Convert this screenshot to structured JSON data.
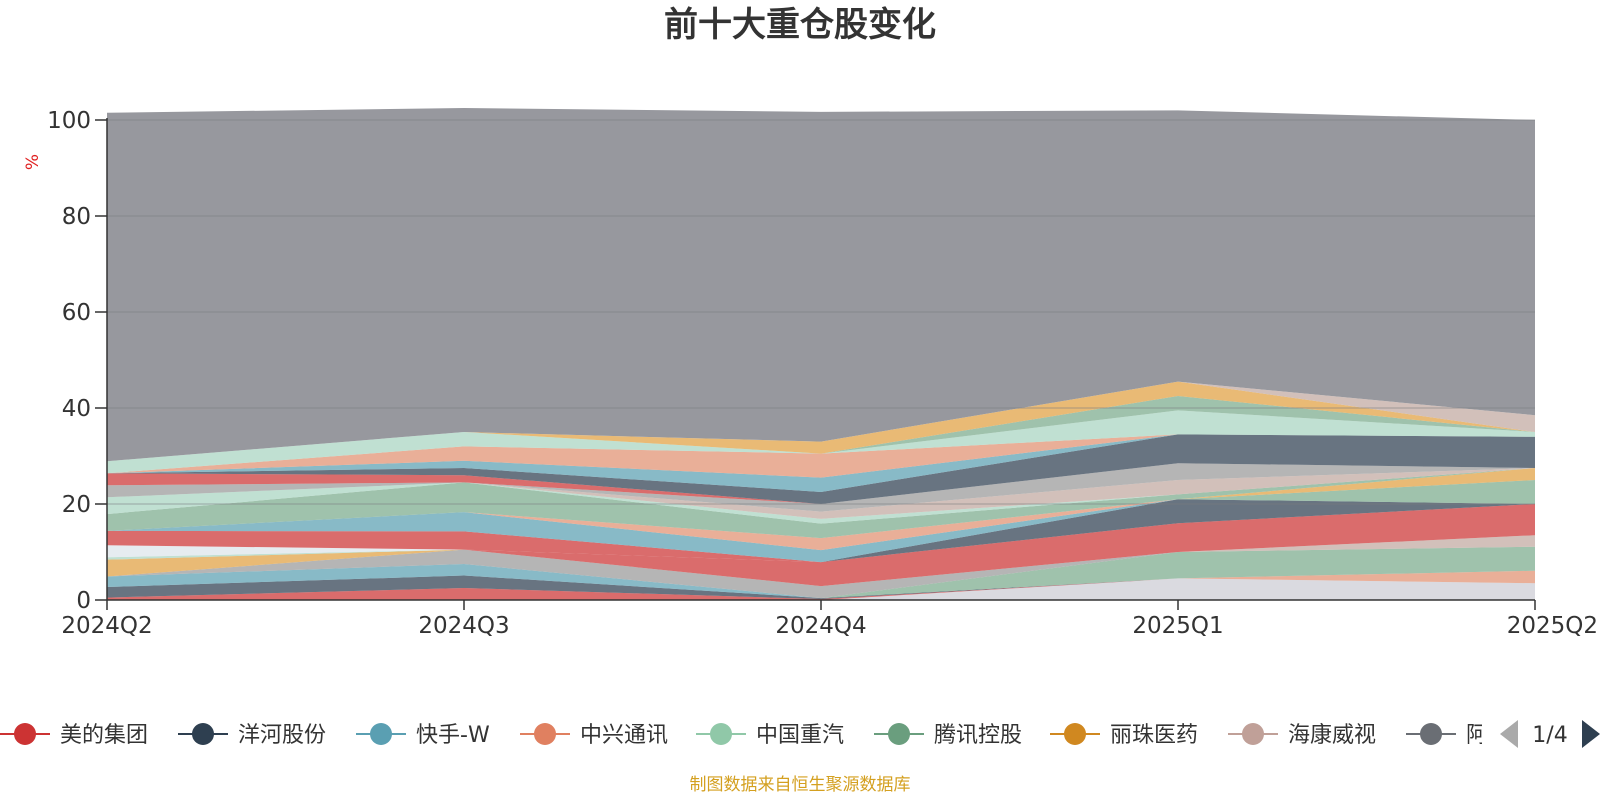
{
  "chart_data": {
    "type": "area",
    "stacked": true,
    "title": "前十大重仓股变化",
    "ylabel": "%",
    "ylim": [
      0,
      100
    ],
    "yticks": [
      0,
      20,
      40,
      60,
      80,
      100
    ],
    "grid": true,
    "categories": [
      "2024Q2",
      "2024Q3",
      "2024Q4",
      "2025Q1",
      "2025Q2"
    ],
    "series": [
      {
        "color": "#ccccd4",
        "values": [
          0,
          0,
          0,
          4.5,
          3.5
        ]
      },
      {
        "color": "#cc3333",
        "values": [
          0.5,
          2.5,
          0.2,
          0,
          0
        ]
      },
      {
        "color": "#2e3f50",
        "values": [
          2.2,
          2.6,
          0.2,
          0,
          0
        ]
      },
      {
        "color": "#5a9fb2",
        "values": [
          2.2,
          2.4,
          0,
          0,
          0
        ]
      },
      {
        "color": "#e09070",
        "values": [
          0,
          0,
          0,
          0,
          2.6
        ]
      },
      {
        "color": "#7aab8c",
        "values": [
          0,
          0,
          0,
          5.5,
          5
        ]
      },
      {
        "color": "#c0a8a0",
        "values": [
          0,
          0,
          0,
          0,
          2.4
        ]
      },
      {
        "color": "#999999",
        "values": [
          0,
          3,
          2.5,
          0,
          0
        ]
      },
      {
        "color": "#cc3333",
        "values": [
          0,
          0,
          5,
          6,
          6.5
        ]
      },
      {
        "color": "#2e3f50",
        "values": [
          0,
          0,
          0,
          5,
          0
        ]
      },
      {
        "color": "#7aab8c",
        "values": [
          0,
          0,
          0,
          0,
          5
        ]
      },
      {
        "color": "#e0a040",
        "values": [
          3.5,
          0,
          0,
          0,
          2.5
        ]
      },
      {
        "color": "#a8d4c0",
        "values": [
          0.5,
          0,
          0,
          0,
          0
        ]
      },
      {
        "color": "#dde4ea",
        "values": [
          2.5,
          0,
          0,
          0,
          0
        ]
      },
      {
        "color": "#cc3333",
        "values": [
          3,
          3.8,
          0,
          0,
          0
        ]
      },
      {
        "color": "#5a9fb2",
        "values": [
          0,
          4,
          2.5,
          0,
          0
        ]
      },
      {
        "color": "#e09070",
        "values": [
          0,
          0,
          2.5,
          0,
          0
        ]
      },
      {
        "color": "#7aab8c",
        "values": [
          3.5,
          6.2,
          3,
          1,
          0
        ]
      },
      {
        "color": "#a8d4c0",
        "values": [
          3.5,
          0,
          1,
          0,
          0
        ]
      },
      {
        "color": "#c0a8a0",
        "values": [
          0,
          0,
          1.5,
          3,
          0
        ]
      },
      {
        "color": "#999999",
        "values": [
          2.5,
          0,
          1.6,
          3.5,
          0
        ]
      },
      {
        "color": "#cc3333",
        "values": [
          2.5,
          1.5,
          0,
          0,
          0
        ]
      },
      {
        "color": "#2e3f50",
        "values": [
          0,
          1.5,
          2.5,
          6,
          6.5
        ]
      },
      {
        "color": "#5a9fb2",
        "values": [
          0,
          1.5,
          3,
          0,
          0
        ]
      },
      {
        "color": "#e09070",
        "values": [
          0,
          3,
          5,
          0,
          0
        ]
      },
      {
        "color": "#a8d4c0",
        "values": [
          2.5,
          3,
          0,
          5,
          1
        ]
      },
      {
        "color": "#7aab8c",
        "values": [
          0,
          0,
          0,
          3,
          0
        ]
      },
      {
        "color": "#e0a040",
        "values": [
          0,
          0,
          2.5,
          3,
          0
        ]
      },
      {
        "color": "#c0a8a0",
        "values": [
          0,
          0,
          0,
          0,
          3.5
        ]
      },
      {
        "color": "#97989e",
        "values": [
          72.6,
          67.5,
          68.7,
          56.5,
          61.5
        ]
      }
    ],
    "legend": {
      "position": "bottom",
      "items": [
        {
          "label": "美的集团",
          "color": "#cc3333"
        },
        {
          "label": "洋河股份",
          "color": "#2e3f50"
        },
        {
          "label": "快手-W",
          "color": "#5a9fb2"
        },
        {
          "label": "中兴通讯",
          "color": "#e08060"
        },
        {
          "label": "中国重汽",
          "color": "#90c8a8"
        },
        {
          "label": "腾讯控股",
          "color": "#6a9e7e"
        },
        {
          "label": "丽珠医药",
          "color": "#d08820"
        },
        {
          "label": "海康威视",
          "color": "#c0a098"
        },
        {
          "label": "阿",
          "color": "#6a6e74"
        }
      ],
      "page": "1/4"
    },
    "source_note": "制图数据来自恒生聚源数据库"
  }
}
